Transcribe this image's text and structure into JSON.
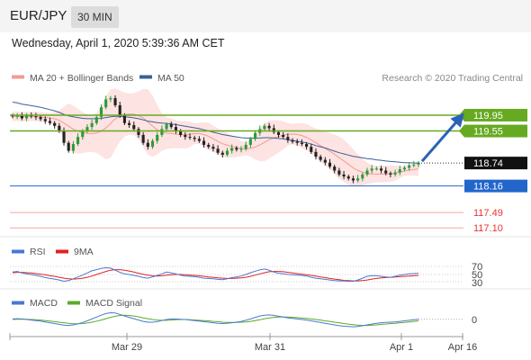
{
  "header": {
    "symbol": "EUR/JPY",
    "interval": "30 MIN"
  },
  "datetime": "Wednesday, April 1, 2020 5:39:36 AM CET",
  "source": "Research © 2020 Trading Central",
  "colors": {
    "bollinger_fill": "#fde3e1",
    "ma20": "#f29a94",
    "ma50": "#3a5f9c",
    "candle_up": "#2e9a3a",
    "candle_down": "#222222",
    "resistance": "#66aa22",
    "pivot": "#2266cc",
    "support": "#ee3333",
    "rsi": "#4a78d0",
    "rsi_ma": "#e02020",
    "macd": "#4a78d0",
    "macd_signal": "#5aaa2a",
    "arrow": "#2a62b6"
  },
  "chart_data": [
    {
      "type": "candlestick",
      "legend": [
        "MA 20 + Bollinger Bands",
        "MA 50"
      ],
      "legend_placement": "top-left",
      "ylim": [
        116.9,
        120.7
      ],
      "grid": false,
      "current_price": 118.74,
      "levels": [
        {
          "label": "119.95",
          "value": 119.95,
          "kind": "resistance"
        },
        {
          "label": "119.55",
          "value": 119.55,
          "kind": "resistance"
        },
        {
          "label": "118.74",
          "value": 118.74,
          "kind": "current"
        },
        {
          "label": "118.16",
          "value": 118.16,
          "kind": "pivot"
        },
        {
          "label": "117.49",
          "value": 117.49,
          "kind": "support"
        },
        {
          "label": "117.10",
          "value": 117.1,
          "kind": "support"
        }
      ],
      "forecast": {
        "from": 118.74,
        "to": 119.95,
        "direction": "up"
      },
      "close": [
        119.92,
        119.93,
        119.87,
        119.95,
        119.92,
        119.9,
        119.85,
        119.8,
        119.75,
        119.68,
        119.55,
        119.25,
        119.05,
        119.22,
        119.4,
        119.55,
        119.65,
        119.75,
        119.9,
        120.15,
        120.35,
        120.38,
        120.2,
        119.95,
        119.75,
        119.7,
        119.6,
        119.45,
        119.25,
        119.15,
        119.3,
        119.45,
        119.6,
        119.72,
        119.65,
        119.55,
        119.45,
        119.4,
        119.38,
        119.35,
        119.3,
        119.2,
        119.15,
        119.1,
        119.0,
        118.95,
        119.05,
        119.12,
        119.08,
        119.1,
        119.2,
        119.35,
        119.5,
        119.6,
        119.68,
        119.62,
        119.52,
        119.45,
        119.4,
        119.32,
        119.28,
        119.25,
        119.22,
        119.15,
        119.02,
        118.9,
        118.82,
        118.75,
        118.65,
        118.55,
        118.45,
        118.4,
        118.35,
        118.3,
        118.35,
        118.45,
        118.55,
        118.6,
        118.6,
        118.55,
        118.48,
        118.45,
        118.5,
        118.58,
        118.62,
        118.68,
        118.7,
        118.74
      ],
      "ma50": [
        120.28,
        120.26,
        120.23,
        120.21,
        120.19,
        120.17,
        120.15,
        120.12,
        120.09,
        120.06,
        120.02,
        119.97,
        119.93,
        119.91,
        119.89,
        119.87,
        119.86,
        119.86,
        119.86,
        119.87,
        119.89,
        119.91,
        119.92,
        119.92,
        119.91,
        119.9,
        119.88,
        119.86,
        119.83,
        119.8,
        119.78,
        119.76,
        119.75,
        119.74,
        119.73,
        119.71,
        119.69,
        119.67,
        119.65,
        119.63,
        119.61,
        119.58,
        119.55,
        119.52,
        119.49,
        119.46,
        119.44,
        119.42,
        119.4,
        119.38,
        119.37,
        119.37,
        119.37,
        119.37,
        119.38,
        119.38,
        119.37,
        119.36,
        119.35,
        119.33,
        119.31,
        119.29,
        119.27,
        119.25,
        119.22,
        119.18,
        119.15,
        119.12,
        119.08,
        119.04,
        119.0,
        118.97,
        118.94,
        118.91,
        118.89,
        118.87,
        118.85,
        118.84,
        118.82,
        118.81,
        118.79,
        118.78,
        118.77,
        118.76,
        118.75,
        118.75,
        118.74,
        118.74
      ]
    },
    {
      "type": "line",
      "legend": [
        "RSI",
        "9MA"
      ],
      "legend_placement": "top-left",
      "ylim": [
        0,
        100
      ],
      "ticks": [
        "70",
        "50",
        "30"
      ],
      "rsi": [
        58,
        60,
        55,
        52,
        50,
        47,
        44,
        40,
        37,
        35,
        32,
        28,
        30,
        36,
        42,
        48,
        55,
        62,
        66,
        70,
        72,
        71,
        64,
        57,
        52,
        50,
        47,
        44,
        40,
        38,
        42,
        47,
        52,
        58,
        55,
        52,
        48,
        45,
        44,
        43,
        41,
        38,
        37,
        36,
        34,
        33,
        36,
        40,
        42,
        45,
        50,
        56,
        61,
        65,
        68,
        64,
        58,
        54,
        52,
        50,
        49,
        48,
        47,
        45,
        41,
        38,
        36,
        34,
        32,
        30,
        29,
        29,
        28,
        28,
        32,
        38,
        44,
        46,
        46,
        44,
        42,
        41,
        44,
        48,
        50,
        52,
        53,
        54
      ],
      "ma": [
        56,
        57,
        57,
        56,
        55,
        53,
        51,
        49,
        46,
        44,
        41,
        38,
        36,
        35,
        36,
        38,
        41,
        45,
        50,
        55,
        60,
        64,
        66,
        66,
        64,
        61,
        58,
        54,
        51,
        48,
        46,
        45,
        46,
        48,
        49,
        50,
        50,
        49,
        48,
        47,
        46,
        44,
        42,
        41,
        39,
        38,
        37,
        37,
        38,
        39,
        41,
        44,
        48,
        52,
        56,
        59,
        60,
        60,
        59,
        57,
        55,
        53,
        51,
        49,
        47,
        45,
        42,
        40,
        37,
        35,
        33,
        31,
        30,
        29,
        29,
        30,
        32,
        35,
        37,
        39,
        40,
        41,
        42,
        43,
        44,
        45,
        46,
        47
      ]
    },
    {
      "type": "line",
      "legend": [
        "MACD",
        "MACD Signal"
      ],
      "legend_placement": "top-left",
      "ticks": [
        "0"
      ],
      "macd": [
        0.02,
        0.03,
        0.02,
        0.0,
        -0.02,
        -0.04,
        -0.06,
        -0.09,
        -0.12,
        -0.15,
        -0.18,
        -0.21,
        -0.22,
        -0.2,
        -0.16,
        -0.11,
        -0.05,
        0.02,
        0.09,
        0.16,
        0.22,
        0.25,
        0.24,
        0.19,
        0.13,
        0.08,
        0.03,
        -0.02,
        -0.07,
        -0.1,
        -0.1,
        -0.08,
        -0.04,
        0.0,
        0.02,
        0.02,
        0.01,
        0.0,
        -0.02,
        -0.04,
        -0.06,
        -0.08,
        -0.1,
        -0.12,
        -0.14,
        -0.15,
        -0.14,
        -0.12,
        -0.1,
        -0.07,
        -0.03,
        0.02,
        0.08,
        0.13,
        0.16,
        0.17,
        0.15,
        0.12,
        0.09,
        0.06,
        0.04,
        0.02,
        0.0,
        -0.02,
        -0.05,
        -0.08,
        -0.11,
        -0.14,
        -0.17,
        -0.2,
        -0.23,
        -0.25,
        -0.26,
        -0.27,
        -0.26,
        -0.23,
        -0.2,
        -0.17,
        -0.14,
        -0.12,
        -0.11,
        -0.1,
        -0.09,
        -0.07,
        -0.05,
        -0.03,
        -0.01,
        0.01
      ],
      "signal": [
        0.0,
        0.01,
        0.01,
        0.01,
        0.0,
        -0.01,
        -0.02,
        -0.04,
        -0.06,
        -0.08,
        -0.1,
        -0.12,
        -0.14,
        -0.16,
        -0.16,
        -0.15,
        -0.13,
        -0.1,
        -0.06,
        -0.02,
        0.03,
        0.08,
        0.12,
        0.15,
        0.16,
        0.15,
        0.13,
        0.1,
        0.06,
        0.03,
        0.0,
        -0.02,
        -0.03,
        -0.03,
        -0.02,
        -0.01,
        0.0,
        0.0,
        -0.01,
        -0.02,
        -0.03,
        -0.04,
        -0.05,
        -0.07,
        -0.08,
        -0.1,
        -0.11,
        -0.11,
        -0.11,
        -0.1,
        -0.09,
        -0.07,
        -0.04,
        -0.01,
        0.03,
        0.06,
        0.08,
        0.09,
        0.09,
        0.09,
        0.08,
        0.07,
        0.05,
        0.04,
        0.02,
        0.0,
        -0.02,
        -0.05,
        -0.07,
        -0.1,
        -0.12,
        -0.15,
        -0.17,
        -0.19,
        -0.21,
        -0.22,
        -0.22,
        -0.21,
        -0.2,
        -0.18,
        -0.17,
        -0.15,
        -0.14,
        -0.12,
        -0.11,
        -0.09,
        -0.07,
        -0.05
      ]
    }
  ],
  "x_axis": {
    "ticks": [
      "Mar 29",
      "Mar 31",
      "Apr 1",
      "Apr 16"
    ]
  }
}
